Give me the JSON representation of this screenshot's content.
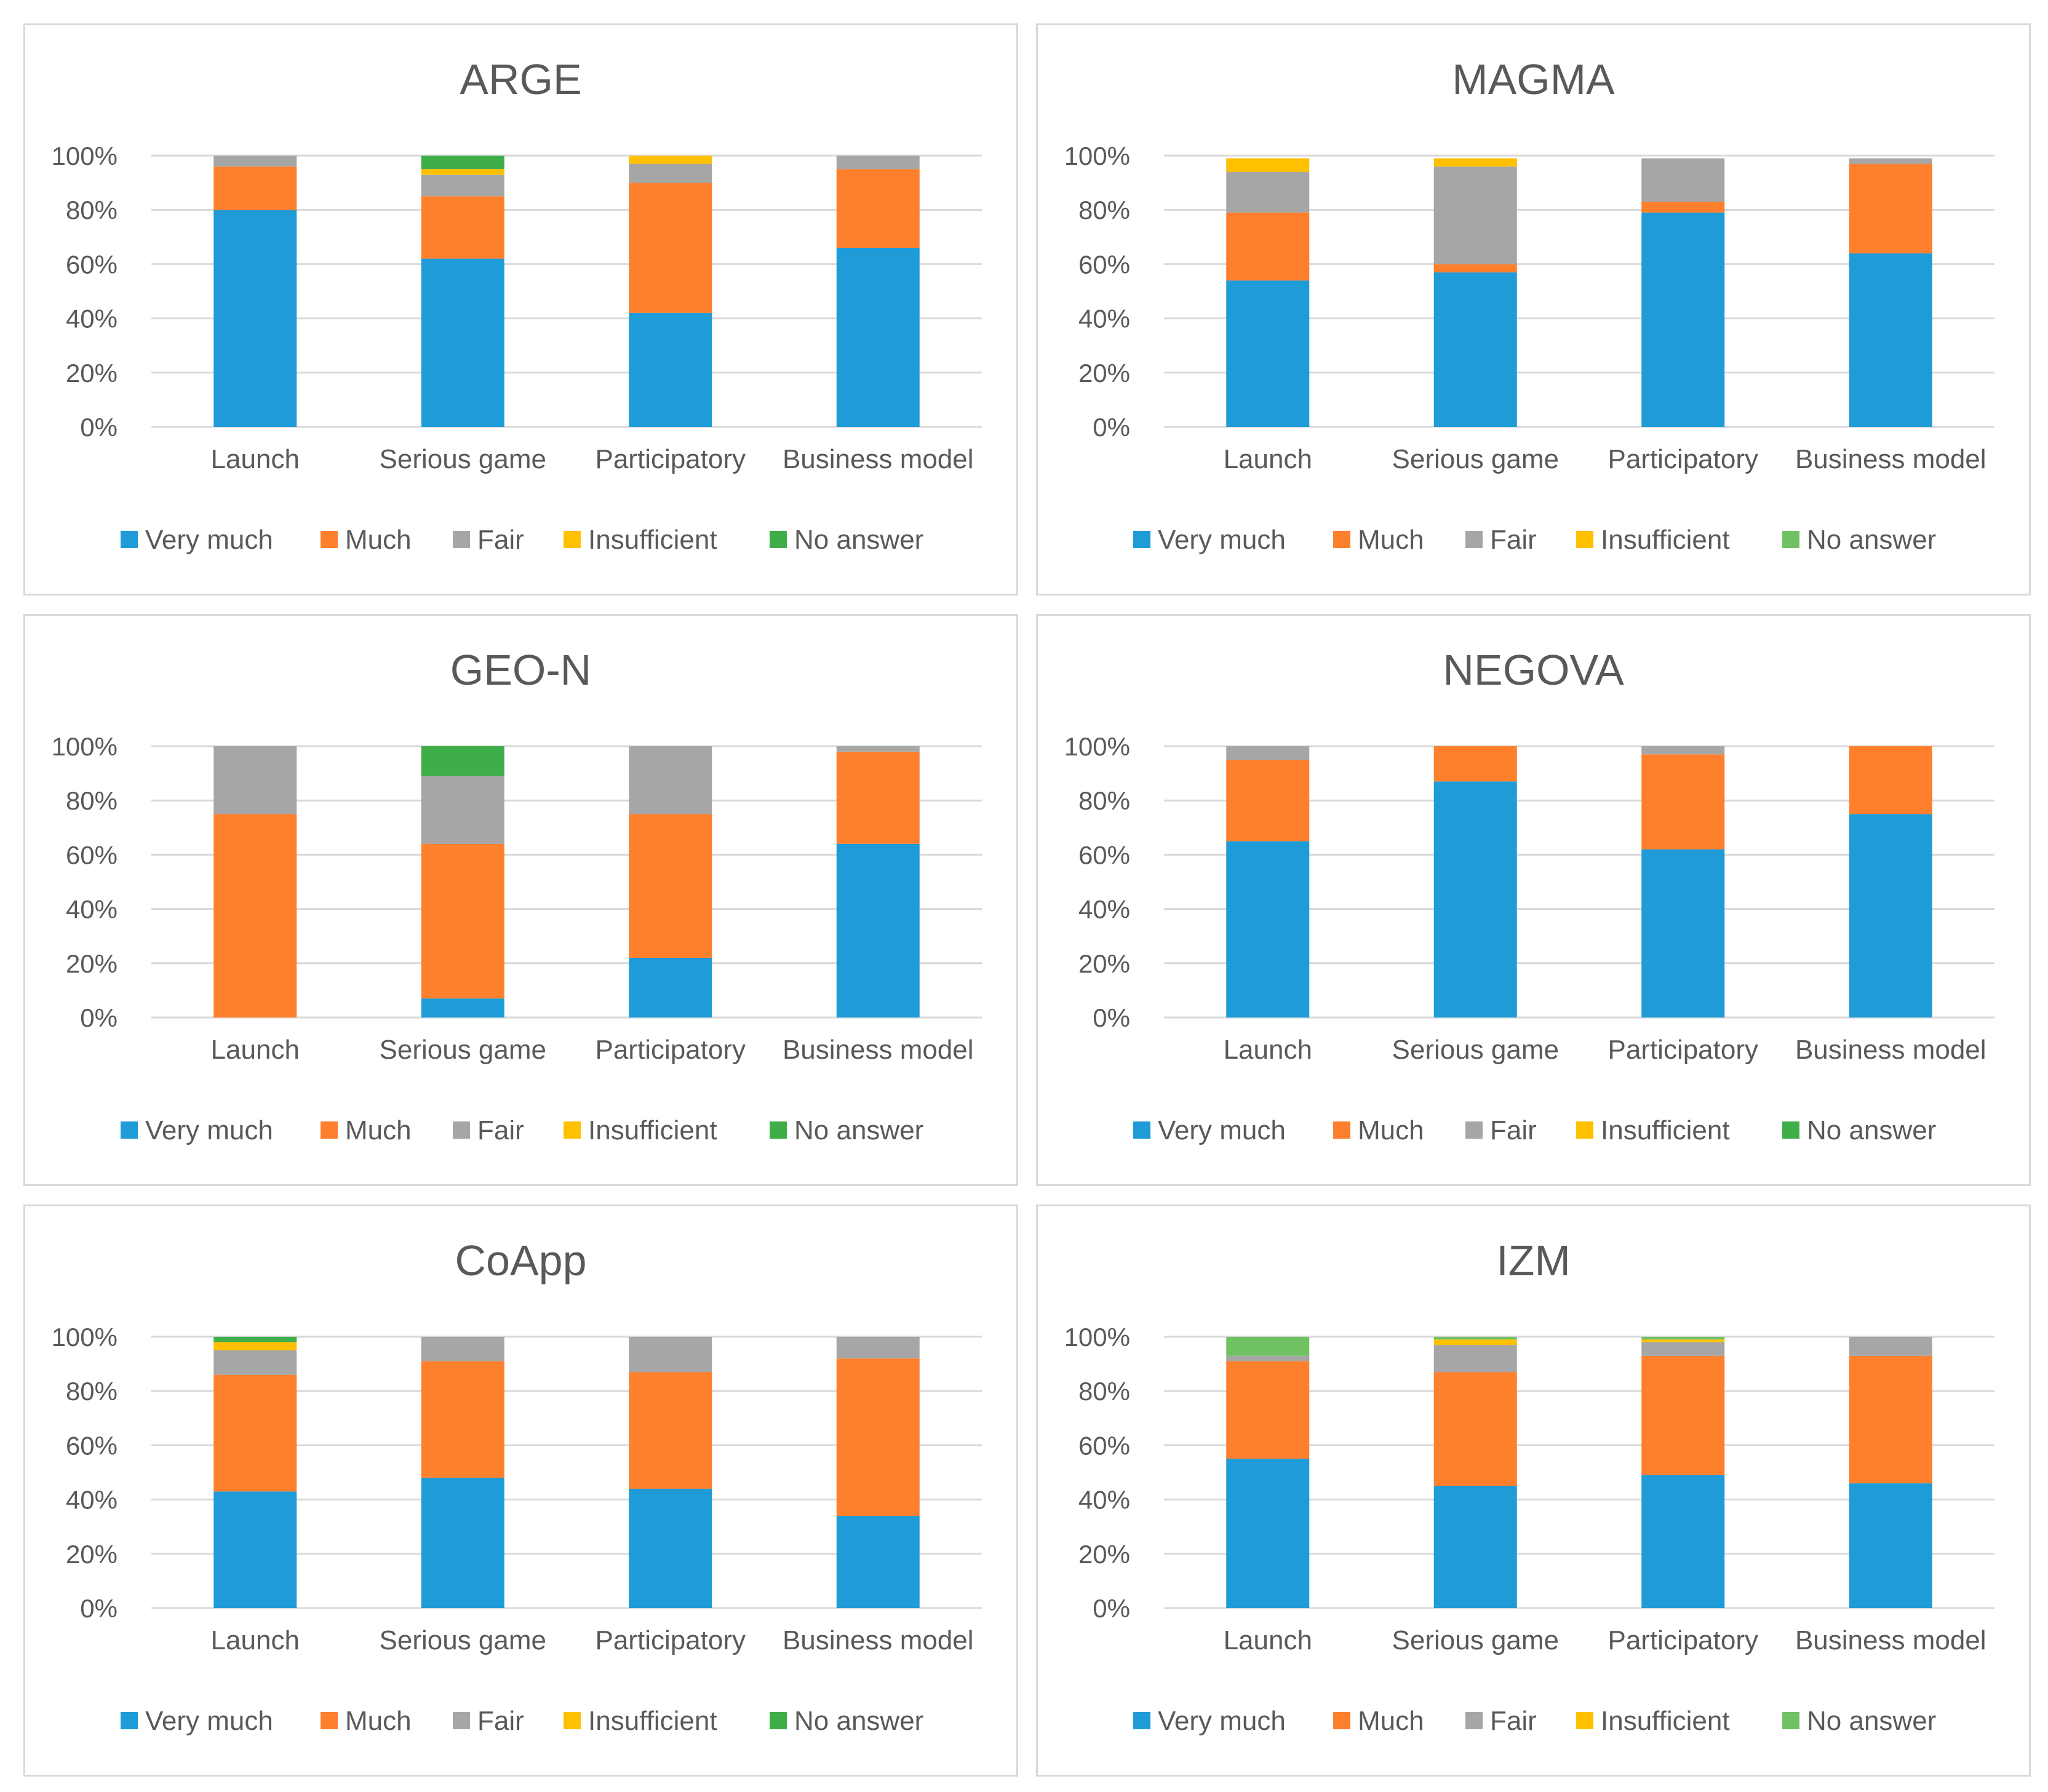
{
  "colors": {
    "very_much": "#1f9bd7",
    "much": "#fe7f2c",
    "fair": "#a6a6a6",
    "insufficient": "#ffc000",
    "no_answer": "#3fae49",
    "no_answer_light": "#70c162",
    "grid": "#d9d9d9",
    "text": "#595959"
  },
  "chart_data": [
    {
      "type": "bar",
      "stacked": true,
      "title": "ARGE",
      "categories": [
        "Launch",
        "Serious game",
        "Participatory",
        "Business model"
      ],
      "ylim": [
        0,
        100
      ],
      "yticks": [
        "0%",
        "20%",
        "40%",
        "60%",
        "80%",
        "100%"
      ],
      "grid": true,
      "legend": "bottom",
      "series": [
        {
          "name": "Very much",
          "values": [
            80,
            62,
            42,
            66
          ]
        },
        {
          "name": "Much",
          "values": [
            16,
            23,
            48,
            29
          ]
        },
        {
          "name": "Fair",
          "values": [
            4,
            8,
            7,
            5
          ]
        },
        {
          "name": "Insufficient",
          "values": [
            0,
            2,
            3,
            0
          ]
        },
        {
          "name": "No answer",
          "values": [
            0,
            5,
            0,
            0
          ]
        }
      ]
    },
    {
      "type": "bar",
      "stacked": true,
      "title": "MAGMA",
      "categories": [
        "Launch",
        "Serious game",
        "Participatory",
        "Business model"
      ],
      "ylim": [
        0,
        100
      ],
      "yticks": [
        "0%",
        "20%",
        "40%",
        "60%",
        "80%",
        "100%"
      ],
      "grid": true,
      "legend": "bottom",
      "series": [
        {
          "name": "Very much",
          "values": [
            54,
            57,
            79,
            64
          ]
        },
        {
          "name": "Much",
          "values": [
            25,
            3,
            4,
            33
          ]
        },
        {
          "name": "Fair",
          "values": [
            15,
            36,
            16,
            2
          ]
        },
        {
          "name": "Insufficient",
          "values": [
            5,
            3,
            0,
            0
          ]
        },
        {
          "name": "No answer",
          "values": [
            0,
            0,
            0,
            0
          ]
        }
      ]
    },
    {
      "type": "bar",
      "stacked": true,
      "title": "GEO-N",
      "categories": [
        "Launch",
        "Serious game",
        "Participatory",
        "Business model"
      ],
      "ylim": [
        0,
        100
      ],
      "yticks": [
        "0%",
        "20%",
        "40%",
        "60%",
        "80%",
        "100%"
      ],
      "grid": true,
      "legend": "bottom",
      "series": [
        {
          "name": "Very much",
          "values": [
            0,
            7,
            22,
            64
          ]
        },
        {
          "name": "Much",
          "values": [
            75,
            57,
            53,
            34
          ]
        },
        {
          "name": "Fair",
          "values": [
            25,
            25,
            25,
            2
          ]
        },
        {
          "name": "Insufficient",
          "values": [
            0,
            0,
            0,
            0
          ]
        },
        {
          "name": "No answer",
          "values": [
            0,
            11,
            0,
            0
          ]
        }
      ]
    },
    {
      "type": "bar",
      "stacked": true,
      "title": "NEGOVA",
      "categories": [
        "Launch",
        "Serious game",
        "Participatory",
        "Business model"
      ],
      "ylim": [
        0,
        100
      ],
      "yticks": [
        "0%",
        "20%",
        "40%",
        "60%",
        "80%",
        "100%"
      ],
      "grid": true,
      "legend": "bottom",
      "series": [
        {
          "name": "Very much",
          "values": [
            65,
            87,
            62,
            75
          ]
        },
        {
          "name": "Much",
          "values": [
            30,
            13,
            35,
            25
          ]
        },
        {
          "name": "Fair",
          "values": [
            5,
            0,
            3,
            0
          ]
        },
        {
          "name": "Insufficient",
          "values": [
            0,
            0,
            0,
            0
          ]
        },
        {
          "name": "No answer",
          "values": [
            0,
            0,
            0,
            0
          ]
        }
      ]
    },
    {
      "type": "bar",
      "stacked": true,
      "title": "CoApp",
      "categories": [
        "Launch",
        "Serious game",
        "Participatory",
        "Business model"
      ],
      "ylim": [
        0,
        100
      ],
      "yticks": [
        "0%",
        "20%",
        "40%",
        "60%",
        "80%",
        "100%"
      ],
      "grid": true,
      "legend": "bottom",
      "series": [
        {
          "name": "Very much",
          "values": [
            43,
            48,
            44,
            34
          ]
        },
        {
          "name": "Much",
          "values": [
            43,
            43,
            43,
            58
          ]
        },
        {
          "name": "Fair",
          "values": [
            9,
            9,
            13,
            8
          ]
        },
        {
          "name": "Insufficient",
          "values": [
            3,
            0,
            0,
            0
          ]
        },
        {
          "name": "No answer",
          "values": [
            2,
            0,
            0,
            0
          ]
        }
      ]
    },
    {
      "type": "bar",
      "stacked": true,
      "title": "IZM",
      "categories": [
        "Launch",
        "Serious game",
        "Participatory",
        "Business model"
      ],
      "ylim": [
        0,
        100
      ],
      "yticks": [
        "0%",
        "20%",
        "40%",
        "60%",
        "80%",
        "100%"
      ],
      "grid": true,
      "legend": "bottom",
      "series": [
        {
          "name": "Very much",
          "values": [
            55,
            45,
            49,
            46
          ]
        },
        {
          "name": "Much",
          "values": [
            36,
            42,
            44,
            47
          ]
        },
        {
          "name": "Fair",
          "values": [
            2,
            10,
            5,
            7
          ]
        },
        {
          "name": "Insufficient",
          "values": [
            0,
            2,
            1,
            0
          ]
        },
        {
          "name": "No answer",
          "values": [
            7,
            1,
            1,
            0
          ]
        }
      ]
    }
  ]
}
